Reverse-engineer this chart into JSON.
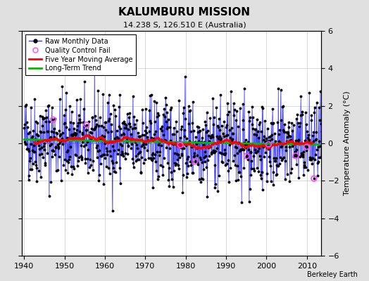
{
  "title": "KALUMBURU MISSION",
  "subtitle": "14.238 S, 126.510 E (Australia)",
  "credit": "Berkeley Earth",
  "ylabel": "Temperature Anomaly (°C)",
  "xlim": [
    1939.5,
    2013.5
  ],
  "ylim": [
    -6,
    6
  ],
  "yticks": [
    -6,
    -4,
    -2,
    0,
    2,
    4,
    6
  ],
  "xticks": [
    1940,
    1950,
    1960,
    1970,
    1980,
    1990,
    2000,
    2010
  ],
  "raw_color": "#3333ff",
  "raw_stem_color": "#8888ff",
  "ma_color": "#ff0000",
  "trend_color": "#00bb00",
  "qc_color": "#ff44ff",
  "background_color": "#e0e0e0",
  "plot_bg_color": "#ffffff",
  "seed": 42
}
